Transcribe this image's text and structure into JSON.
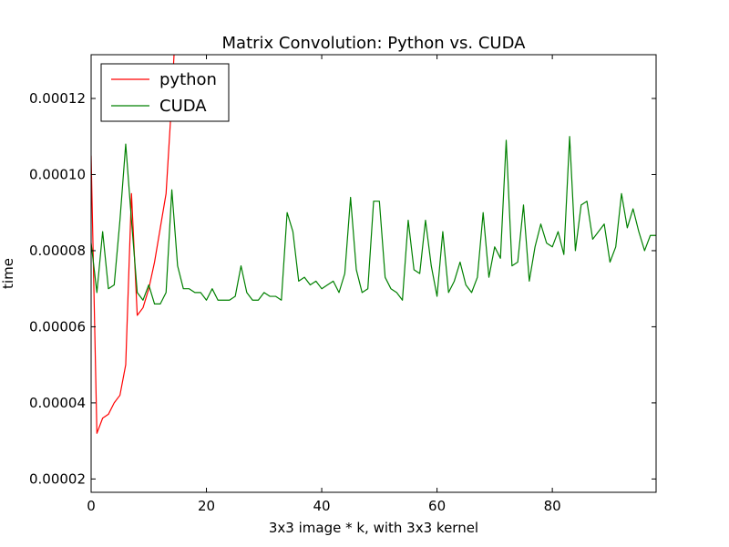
{
  "chart_data": {
    "type": "line",
    "title": "Matrix Convolution: Python vs. CUDA",
    "xlabel": "3x3 image * k, with 3x3 kernel",
    "ylabel": "time",
    "xlim": [
      0,
      98
    ],
    "ylim": [
      1.65e-05,
      0.0001315
    ],
    "x_ticks": [
      0,
      20,
      40,
      60,
      80
    ],
    "x_tick_labels": [
      "0",
      "20",
      "40",
      "60",
      "80"
    ],
    "y_ticks": [
      2e-05,
      4e-05,
      6e-05,
      8e-05,
      0.0001,
      0.00012
    ],
    "y_tick_labels": [
      "0.00002",
      "0.00004",
      "0.00006",
      "0.00008",
      "0.00010",
      "0.00012"
    ],
    "grid": false,
    "legend_position": "top-left",
    "series": [
      {
        "name": "python",
        "color": "#ff0000",
        "x": [
          0,
          1,
          2,
          3,
          4,
          5,
          6,
          7,
          8,
          9,
          10,
          11,
          12,
          13,
          14,
          14.5
        ],
        "y": [
          0.000105,
          3.2e-05,
          3.6e-05,
          3.7e-05,
          4e-05,
          4.2e-05,
          5e-05,
          9.5e-05,
          6.3e-05,
          6.5e-05,
          7e-05,
          7.7e-05,
          8.6e-05,
          9.5e-05,
          0.00012,
          0.000135
        ]
      },
      {
        "name": "CUDA",
        "color": "#008000",
        "x": [
          0,
          1,
          2,
          3,
          4,
          5,
          6,
          7,
          8,
          9,
          10,
          11,
          12,
          13,
          14,
          15,
          16,
          17,
          18,
          19,
          20,
          21,
          22,
          23,
          24,
          25,
          26,
          27,
          28,
          29,
          30,
          31,
          32,
          33,
          34,
          35,
          36,
          37,
          38,
          39,
          40,
          41,
          42,
          43,
          44,
          45,
          46,
          47,
          48,
          49,
          50,
          51,
          52,
          53,
          54,
          55,
          56,
          57,
          58,
          59,
          60,
          61,
          62,
          63,
          64,
          65,
          66,
          67,
          68,
          69,
          70,
          71,
          72,
          73,
          74,
          75,
          76,
          77,
          78,
          79,
          80,
          81,
          82,
          83,
          84,
          85,
          86,
          87,
          88,
          89,
          90,
          91,
          92,
          93,
          94,
          95,
          96,
          97,
          98
        ],
        "y": [
          8.2e-05,
          6.9e-05,
          8.5e-05,
          7e-05,
          7.1e-05,
          8.8e-05,
          0.000108,
          8.8e-05,
          6.9e-05,
          6.7e-05,
          7.1e-05,
          6.6e-05,
          6.6e-05,
          6.9e-05,
          9.6e-05,
          7.6e-05,
          7e-05,
          7e-05,
          6.9e-05,
          6.9e-05,
          6.7e-05,
          7e-05,
          6.7e-05,
          6.7e-05,
          6.7e-05,
          6.8e-05,
          7.6e-05,
          6.9e-05,
          6.7e-05,
          6.7e-05,
          6.9e-05,
          6.8e-05,
          6.8e-05,
          6.7e-05,
          9e-05,
          8.5e-05,
          7.2e-05,
          7.3e-05,
          7.1e-05,
          7.2e-05,
          7e-05,
          7.1e-05,
          7.2e-05,
          6.9e-05,
          7.4e-05,
          9.4e-05,
          7.5e-05,
          6.9e-05,
          7e-05,
          9.3e-05,
          9.3e-05,
          7.3e-05,
          7e-05,
          6.9e-05,
          6.7e-05,
          8.8e-05,
          7.5e-05,
          7.4e-05,
          8.8e-05,
          7.6e-05,
          6.8e-05,
          8.5e-05,
          6.9e-05,
          7.2e-05,
          7.7e-05,
          7.1e-05,
          6.9e-05,
          7.3e-05,
          9e-05,
          7.3e-05,
          8.1e-05,
          7.8e-05,
          0.000109,
          7.6e-05,
          7.7e-05,
          9.2e-05,
          7.2e-05,
          8.1e-05,
          8.7e-05,
          8.2e-05,
          8.1e-05,
          8.5e-05,
          7.9e-05,
          0.00011,
          8e-05,
          9.2e-05,
          9.3e-05,
          8.3e-05,
          8.5e-05,
          8.7e-05,
          7.7e-05,
          8.1e-05,
          9.5e-05,
          8.6e-05,
          9.1e-05,
          8.5e-05,
          8e-05,
          8.4e-05,
          8.4e-05
        ]
      }
    ]
  }
}
